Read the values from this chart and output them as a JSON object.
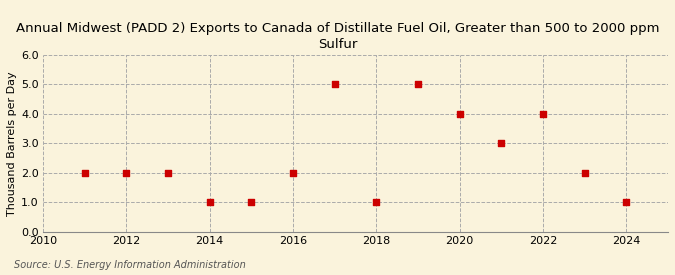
{
  "title": "Annual Midwest (PADD 2) Exports to Canada of Distillate Fuel Oil, Greater than 500 to 2000 ppm\nSulfur",
  "ylabel": "Thousand Barrels per Day",
  "source": "Source: U.S. Energy Information Administration",
  "x": [
    2011,
    2012,
    2013,
    2014,
    2015,
    2016,
    2017,
    2018,
    2019,
    2020,
    2021,
    2022,
    2023,
    2024
  ],
  "y": [
    2.0,
    2.0,
    2.0,
    1.0,
    1.0,
    2.0,
    5.0,
    1.0,
    5.0,
    4.0,
    3.0,
    4.0,
    2.0,
    1.0
  ],
  "xlim": [
    2010,
    2025
  ],
  "ylim": [
    0.0,
    6.0
  ],
  "yticks": [
    0.0,
    1.0,
    2.0,
    3.0,
    4.0,
    5.0,
    6.0
  ],
  "xticks": [
    2010,
    2012,
    2014,
    2016,
    2018,
    2020,
    2022,
    2024
  ],
  "marker_color": "#cc0000",
  "marker": "s",
  "marker_size": 4,
  "bg_color": "#faf3dc",
  "grid_color": "#aaaaaa",
  "title_fontsize": 9.5,
  "label_fontsize": 8,
  "tick_fontsize": 8,
  "source_fontsize": 7
}
